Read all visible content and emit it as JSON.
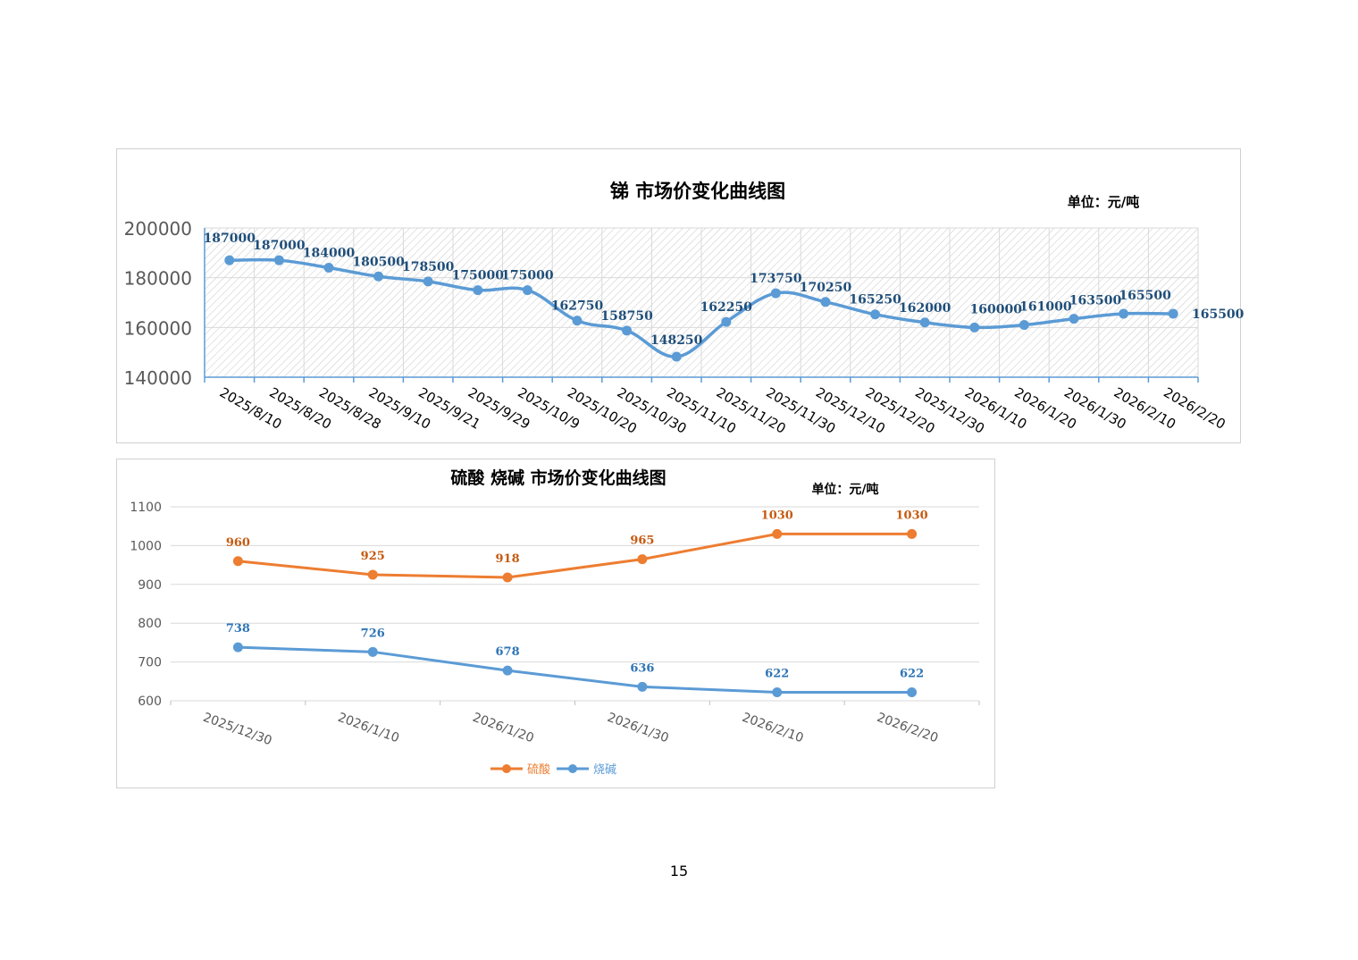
{
  "page_number": "15",
  "chart_data": [
    {
      "type": "line",
      "title": "锑 市场价变化曲线图",
      "unit_label": "单位：元/吨",
      "categories": [
        "2025/8/10",
        "2025/8/20",
        "2025/8/28",
        "2025/9/10",
        "2025/9/21",
        "2025/9/29",
        "2025/10/9",
        "2025/10/20",
        "2025/10/30",
        "2025/11/10",
        "2025/11/20",
        "2025/11/30",
        "2025/12/10",
        "2025/12/20",
        "2025/12/30",
        "2026/1/10",
        "2026/1/20",
        "2026/1/30",
        "2026/2/10",
        "2026/2/20"
      ],
      "series": [
        {
          "values": [
            187000,
            187000,
            184000,
            180500,
            178500,
            175000,
            175000,
            162750,
            158750,
            148250,
            162250,
            173750,
            170250,
            165250,
            162000,
            160000,
            161000,
            163500,
            165500,
            165500
          ],
          "color": "#5b9bd5"
        }
      ],
      "ylim": [
        140000,
        200000
      ],
      "yticks": [
        "140000",
        "160000",
        "180000",
        "200000"
      ],
      "grid": true,
      "smooth": true
    },
    {
      "type": "line",
      "title": "硫酸 烧碱  市场价变化曲线图",
      "unit_label": "单位：元/吨",
      "categories": [
        "2025/12/30",
        "2026/1/10",
        "2026/1/20",
        "2026/1/30",
        "2026/2/10",
        "2026/2/20"
      ],
      "series": [
        {
          "name": "硫酸",
          "values": [
            960,
            925,
            918,
            965,
            1030,
            1030
          ],
          "color": "#ed7d31"
        },
        {
          "name": "烧碱",
          "values": [
            738,
            726,
            678,
            636,
            622,
            622
          ],
          "color": "#5b9bd5"
        }
      ],
      "ylim": [
        600,
        1100
      ],
      "yticks": [
        "600",
        "700",
        "800",
        "900",
        "1000",
        "1100"
      ],
      "grid": true,
      "legend": "bottom"
    }
  ]
}
